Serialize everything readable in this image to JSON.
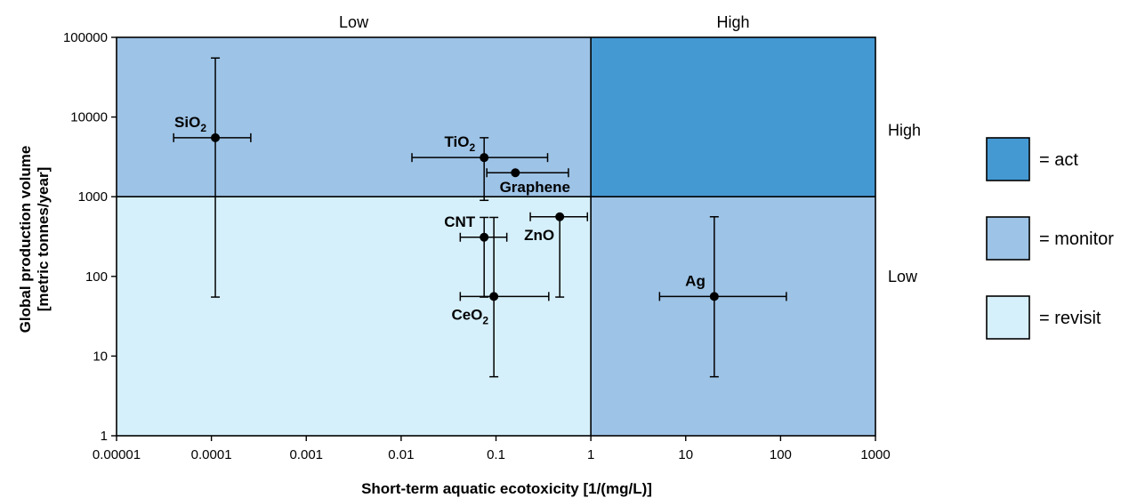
{
  "chart_data": {
    "type": "scatter",
    "title": "",
    "xlabel": "Short-term aquatic ecotoxicity [1/(mg/L)]",
    "ylabel_lines": [
      "Global production volume",
      "[metric tonnes/year]"
    ],
    "x_scale": "log",
    "y_scale": "log",
    "xlim": [
      1e-05,
      1000
    ],
    "ylim": [
      1,
      100000
    ],
    "x_ticks": [
      {
        "value": 1e-05,
        "label": "0.00001"
      },
      {
        "value": 0.0001,
        "label": "0.0001"
      },
      {
        "value": 0.001,
        "label": "0.001"
      },
      {
        "value": 0.01,
        "label": "0.01"
      },
      {
        "value": 0.1,
        "label": "0.1"
      },
      {
        "value": 1,
        "label": "1"
      },
      {
        "value": 10,
        "label": "10"
      },
      {
        "value": 100,
        "label": "100"
      },
      {
        "value": 1000,
        "label": "1000"
      }
    ],
    "y_ticks": [
      {
        "value": 1,
        "label": "1"
      },
      {
        "value": 10,
        "label": "10"
      },
      {
        "value": 100,
        "label": "100"
      },
      {
        "value": 1000,
        "label": "1000"
      },
      {
        "value": 10000,
        "label": "10000"
      },
      {
        "value": 100000,
        "label": "100000"
      }
    ],
    "x_threshold": 1,
    "y_threshold": 1000,
    "regions": [
      {
        "name": "monitor",
        "x": [
          1e-05,
          1
        ],
        "y": [
          1000,
          100000
        ],
        "color": "#9dc3e6"
      },
      {
        "name": "act",
        "x": [
          1,
          1000
        ],
        "y": [
          1000,
          100000
        ],
        "color": "#4499d3"
      },
      {
        "name": "revisit",
        "x": [
          1e-05,
          1
        ],
        "y": [
          1,
          1000
        ],
        "color": "#d6f0fb"
      },
      {
        "name": "monitor",
        "x": [
          1,
          1000
        ],
        "y": [
          1,
          1000
        ],
        "color": "#9dc3e6"
      }
    ],
    "top_labels": [
      {
        "text": "Low",
        "x_range": [
          1e-05,
          1
        ]
      },
      {
        "text": "High",
        "x_range": [
          1,
          1000
        ]
      }
    ],
    "right_labels": [
      {
        "text": "High",
        "y_value": 6800
      },
      {
        "text": "Low",
        "y_value": 100
      }
    ],
    "points": [
      {
        "name": "SiO",
        "sub": "2",
        "x": 0.00011,
        "y": 5500,
        "x_err": [
          4e-05,
          0.00026
        ],
        "y_err": [
          55,
          55000
        ],
        "label_pos": "above-left"
      },
      {
        "name": "TiO",
        "sub": "2",
        "x": 0.075,
        "y": 3100,
        "x_err": [
          0.013,
          0.35
        ],
        "y_err": [
          900,
          5500
        ],
        "label_pos": "above-left"
      },
      {
        "name": "Graphene",
        "sub": "",
        "x": 0.16,
        "y": 2000,
        "x_err": [
          0.08,
          0.58
        ],
        "y_err": null,
        "label_pos": "below"
      },
      {
        "name": "CNT",
        "sub": "",
        "x": 0.075,
        "y": 310,
        "x_err": [
          0.042,
          0.13
        ],
        "y_err": [
          55,
          550
        ],
        "label_pos": "above-left"
      },
      {
        "name": "ZnO",
        "sub": "",
        "x": 0.47,
        "y": 560,
        "x_err": [
          0.23,
          0.92
        ],
        "y_err": [
          55,
          560
        ],
        "label_pos": "below-left"
      },
      {
        "name": "CeO",
        "sub": "2",
        "x": 0.095,
        "y": 56,
        "x_err": [
          0.042,
          0.36
        ],
        "y_err": [
          5.5,
          550
        ],
        "label_pos": "below-left"
      },
      {
        "name": "Ag",
        "sub": "",
        "x": 20,
        "y": 56,
        "x_err": [
          5.3,
          115
        ],
        "y_err": [
          5.5,
          560
        ],
        "label_pos": "above-left"
      }
    ],
    "legend": [
      {
        "label": "= act",
        "color": "#4499d3"
      },
      {
        "label": "= monitor",
        "color": "#9dc3e6"
      },
      {
        "label": "= revisit",
        "color": "#d6f0fb"
      }
    ],
    "legend_position": "right",
    "grid": false
  }
}
